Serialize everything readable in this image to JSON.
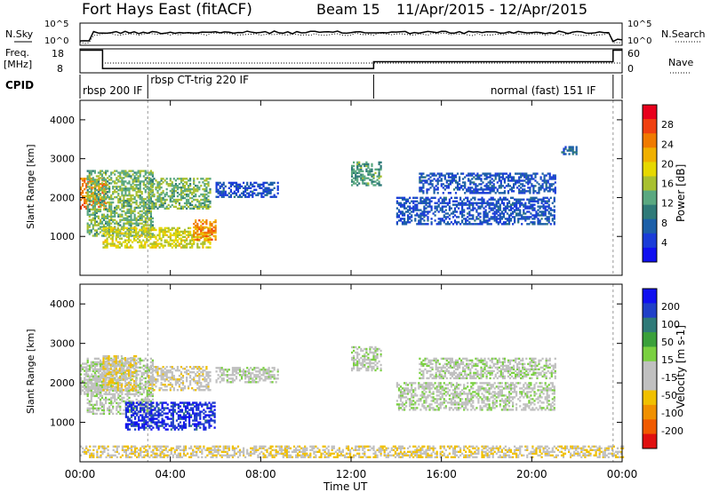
{
  "header": {
    "station": "Fort Hays East (fitACF)",
    "beam": "Beam 15",
    "date_range": "11/Apr/2015 - 12/Apr/2015"
  },
  "top_panels": {
    "nsky_label": "N.Sky",
    "nsearch_label": "N.Search",
    "noise_ticks": [
      "10^5",
      "10^0"
    ],
    "freq_label": "Freq.",
    "freq_unit": "[MHz]",
    "freq_ticks": [
      "18",
      "8"
    ],
    "nave_label": "Nave",
    "nave_ticks": [
      "60",
      "0"
    ],
    "cpid_label": "CPID",
    "cpid_segments": [
      {
        "label": "rbsp 200 IF",
        "start_hour": 0,
        "end_hour": 3
      },
      {
        "label": "rbsp CT-trig 220 IF",
        "start_hour": 3,
        "end_hour": 13
      },
      {
        "label": "normal (fast) 151 IF",
        "start_hour": 13,
        "end_hour": 23.6
      }
    ],
    "freq_series_hours": [
      0,
      1,
      1,
      13,
      13,
      23.6,
      23.6,
      24
    ],
    "freq_series_mhz": [
      17.8,
      17.8,
      9.9,
      9.9,
      12.8,
      12.8,
      17.8,
      17.8
    ]
  },
  "x_axis": {
    "label": "Time UT",
    "ticks": [
      "00:00",
      "04:00",
      "08:00",
      "12:00",
      "16:00",
      "20:00",
      "00:00"
    ],
    "range_hours": [
      0,
      24
    ]
  },
  "power_colorbar": {
    "label": "Power [dB]",
    "ticks": [
      "28",
      "24",
      "20",
      "16",
      "12",
      "8",
      "4"
    ],
    "colors": [
      "#e8001c",
      "#f04010",
      "#f07a00",
      "#f0b000",
      "#e6d800",
      "#a8c030",
      "#5aa880",
      "#2f7a78",
      "#1c5fa8",
      "#1a3cd8",
      "#1010f0"
    ]
  },
  "velocity_colorbar": {
    "label": "Velocity [m s-1]",
    "ticks": [
      "200",
      "100",
      "50",
      "15",
      "-15",
      "-50",
      "-100",
      "-200"
    ],
    "colors": [
      "#1010f0",
      "#2040c8",
      "#2f7a78",
      "#3aa03a",
      "#7ad040",
      "#c0c0c0",
      "#c0c0c0",
      "#f0c000",
      "#f09000",
      "#f05a00",
      "#e01010"
    ]
  },
  "chart_data": [
    {
      "type": "heatmap",
      "title": "Power",
      "xlabel": "Time UT",
      "ylabel": "Slant Range [km]",
      "xlim": [
        0,
        24
      ],
      "ylim": [
        0,
        4500
      ],
      "y_ticks": [
        "4000",
        "3000",
        "2000",
        "1000"
      ],
      "units": "dB",
      "echo_regions": [
        {
          "t0": 0,
          "t1": 1.2,
          "r0": 1700,
          "r1": 2500,
          "value": 24
        },
        {
          "t0": 0.3,
          "t1": 3.2,
          "r0": 1000,
          "r1": 2700,
          "value": 14
        },
        {
          "t0": 1.0,
          "t1": 5.8,
          "r0": 700,
          "r1": 1200,
          "value": 18
        },
        {
          "t0": 3.0,
          "t1": 5.8,
          "r0": 1700,
          "r1": 2500,
          "value": 14
        },
        {
          "t0": 5.0,
          "t1": 6.0,
          "r0": 900,
          "r1": 1400,
          "value": 24
        },
        {
          "t0": 6.0,
          "t1": 8.8,
          "r0": 2000,
          "r1": 2400,
          "value": 6
        },
        {
          "t0": 12.0,
          "t1": 13.3,
          "r0": 2300,
          "r1": 2900,
          "value": 12
        },
        {
          "t0": 14.0,
          "t1": 21.0,
          "r0": 1300,
          "r1": 2000,
          "value": 6
        },
        {
          "t0": 15.0,
          "t1": 21.0,
          "r0": 2100,
          "r1": 2600,
          "value": 6
        },
        {
          "t0": 21.3,
          "t1": 22.0,
          "r0": 3100,
          "r1": 3300,
          "value": 8
        }
      ]
    },
    {
      "type": "heatmap",
      "title": "Velocity",
      "xlabel": "Time UT",
      "ylabel": "Slant Range [km]",
      "xlim": [
        0,
        24
      ],
      "ylim": [
        0,
        4500
      ],
      "y_ticks": [
        "4000",
        "3000",
        "2000",
        "1000"
      ],
      "units": "m s-1",
      "echo_regions": [
        {
          "t0": 0,
          "t1": 1.2,
          "r0": 1700,
          "r1": 2500,
          "value": 0
        },
        {
          "t0": 0.3,
          "t1": 3.2,
          "r0": 1200,
          "r1": 2600,
          "value": 0
        },
        {
          "t0": 1.0,
          "t1": 2.5,
          "r0": 1800,
          "r1": 2700,
          "value": -60
        },
        {
          "t0": 2.0,
          "t1": 6.0,
          "r0": 800,
          "r1": 1500,
          "value": 200
        },
        {
          "t0": 3.0,
          "t1": 5.8,
          "r0": 1800,
          "r1": 2400,
          "value": -40
        },
        {
          "t0": 6.0,
          "t1": 8.8,
          "r0": 2000,
          "r1": 2400,
          "value": 0
        },
        {
          "t0": 12.0,
          "t1": 13.3,
          "r0": 2300,
          "r1": 2900,
          "value": 0
        },
        {
          "t0": 14.0,
          "t1": 21.0,
          "r0": 1300,
          "r1": 2000,
          "value": 0
        },
        {
          "t0": 15.0,
          "t1": 21.0,
          "r0": 2100,
          "r1": 2600,
          "value": 0
        },
        {
          "t0": 0,
          "t1": 24,
          "r0": 100,
          "r1": 400,
          "value": -60
        }
      ]
    }
  ]
}
